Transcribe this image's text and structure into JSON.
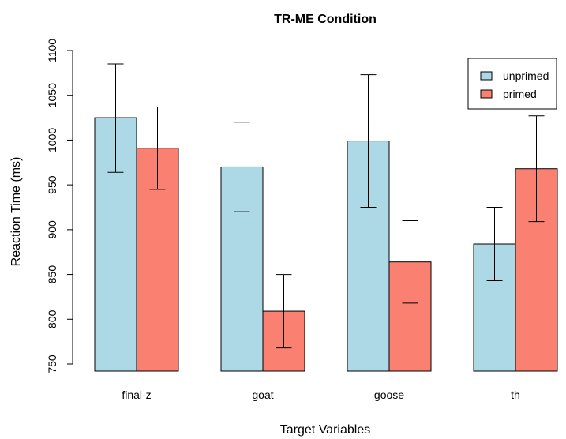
{
  "chart_data": {
    "type": "bar",
    "title": "TR-ME Condition",
    "xlabel": "Target Variables",
    "ylabel": "Reaction Time (ms)",
    "categories": [
      "final-z",
      "goat",
      "goose",
      "th"
    ],
    "ylim": [
      750,
      1100
    ],
    "yticks": [
      750,
      800,
      850,
      900,
      950,
      1000,
      1050,
      1100
    ],
    "grid": false,
    "legend_position": "top-right",
    "series": [
      {
        "name": "unprimed",
        "color": "#add8e6",
        "values": [
          1025,
          970,
          999,
          884
        ],
        "error_low": [
          964,
          920,
          925,
          843
        ],
        "error_high": [
          1085,
          1020,
          1073,
          925
        ]
      },
      {
        "name": "primed",
        "color": "#fa8072",
        "values": [
          991,
          809,
          864,
          968
        ],
        "error_low": [
          945,
          768,
          818,
          909
        ],
        "error_high": [
          1037,
          850,
          910,
          1027
        ]
      }
    ]
  }
}
